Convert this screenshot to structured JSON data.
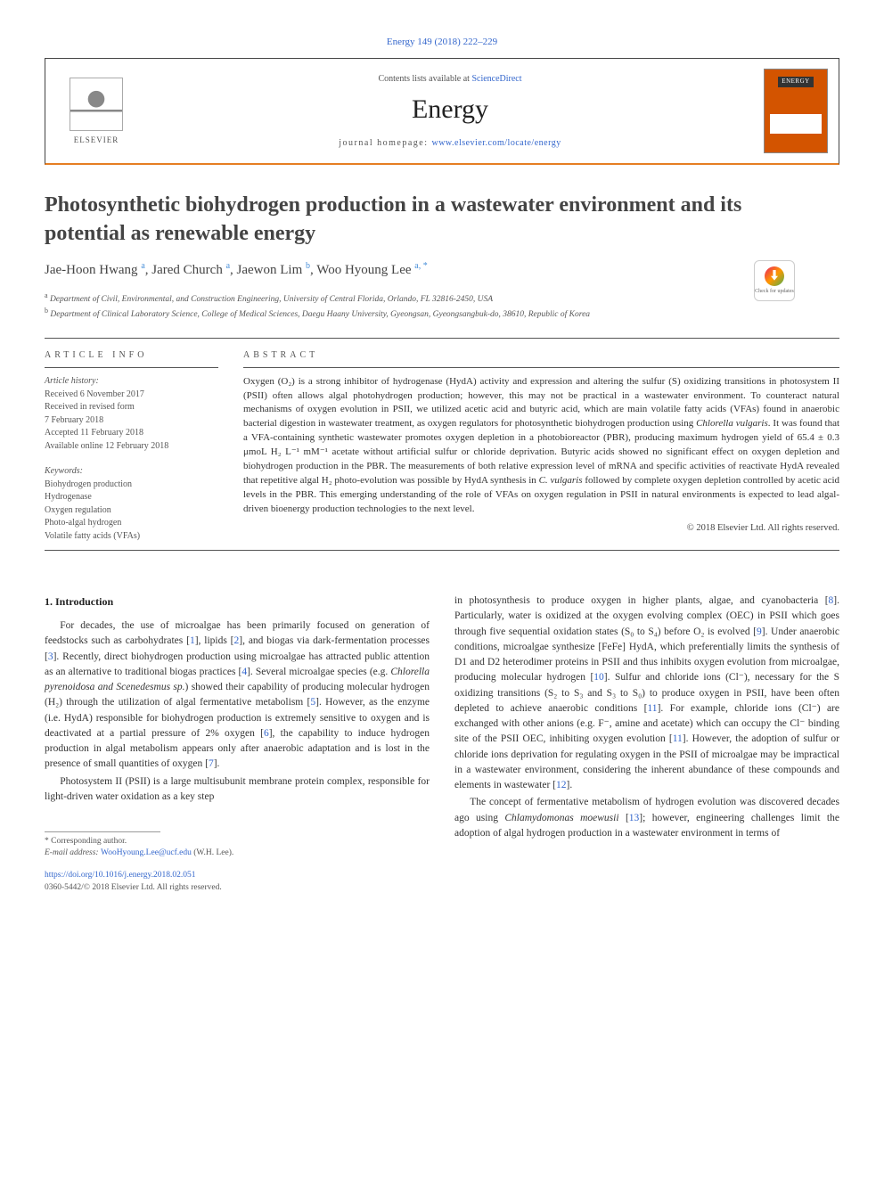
{
  "top_link": "Energy 149 (2018) 222–229",
  "header": {
    "contents_prefix": "Contents lists available at ",
    "contents_link": "ScienceDirect",
    "journal_title": "Energy",
    "homepage_prefix": "journal homepage: ",
    "homepage_link": "www.elsevier.com/locate/energy",
    "publisher_name": "ELSEVIER",
    "cover_label": "ENERGY"
  },
  "check_updates_label": "Check for updates",
  "title": "Photosynthetic biohydrogen production in a wastewater environment and its potential as renewable energy",
  "authors_html": "Jae-Hoon Hwang <sup>a</sup>, Jared Church <sup>a</sup>, Jaewon Lim <sup>b</sup>, Woo Hyoung Lee <sup>a, *</sup>",
  "affiliations": {
    "a": "Department of Civil, Environmental, and Construction Engineering, University of Central Florida, Orlando, FL 32816-2450, USA",
    "b": "Department of Clinical Laboratory Science, College of Medical Sciences, Daegu Haany University, Gyeongsan, Gyeongsangbuk-do, 38610, Republic of Korea"
  },
  "article_info": {
    "heading": "ARTICLE INFO",
    "history_label": "Article history:",
    "history": [
      "Received 6 November 2017",
      "Received in revised form",
      "7 February 2018",
      "Accepted 11 February 2018",
      "Available online 12 February 2018"
    ],
    "keywords_label": "Keywords:",
    "keywords": [
      "Biohydrogen production",
      "Hydrogenase",
      "Oxygen regulation",
      "Photo-algal hydrogen",
      "Volatile fatty acids (VFAs)"
    ]
  },
  "abstract": {
    "heading": "ABSTRACT",
    "text": "Oxygen (O₂) is a strong inhibitor of hydrogenase (HydA) activity and expression and altering the sulfur (S) oxidizing transitions in photosystem II (PSII) often allows algal photohydrogen production; however, this may not be practical in a wastewater environment. To counteract natural mechanisms of oxygen evolution in PSII, we utilized acetic acid and butyric acid, which are main volatile fatty acids (VFAs) found in anaerobic bacterial digestion in wastewater treatment, as oxygen regulators for photosynthetic biohydrogen production using Chlorella vulgaris. It was found that a VFA-containing synthetic wastewater promotes oxygen depletion in a photobioreactor (PBR), producing maximum hydrogen yield of 65.4 ± 0.3 μmoL H₂ L⁻¹ mM⁻¹ acetate without artificial sulfur or chloride deprivation. Butyric acids showed no significant effect on oxygen depletion and biohydrogen production in the PBR. The measurements of both relative expression level of mRNA and specific activities of reactivate HydA revealed that repetitive algal H₂ photo-evolution was possible by HydA synthesis in C. vulgaris followed by complete oxygen depletion controlled by acetic acid levels in the PBR. This emerging understanding of the role of VFAs on oxygen regulation in PSII in natural environments is expected to lead algal-driven bioenergy production technologies to the next level.",
    "copyright": "© 2018 Elsevier Ltd. All rights reserved."
  },
  "body": {
    "section_heading": "1. Introduction",
    "col1_p1": "For decades, the use of microalgae has been primarily focused on generation of feedstocks such as carbohydrates [1], lipids [2], and biogas via dark-fermentation processes [3]. Recently, direct biohydrogen production using microalgae has attracted public attention as an alternative to traditional biogas practices [4]. Several microalgae species (e.g. Chlorella pyrenoidosa and Scenedesmus sp.) showed their capability of producing molecular hydrogen (H₂) through the utilization of algal fermentative metabolism [5]. However, as the enzyme (i.e. HydA) responsible for biohydrogen production is extremely sensitive to oxygen and is deactivated at a partial pressure of 2% oxygen [6], the capability to induce hydrogen production in algal metabolism appears only after anaerobic adaptation and is lost in the presence of small quantities of oxygen [7].",
    "col1_p2": "Photosystem II (PSII) is a large multisubunit membrane protein complex, responsible for light-driven water oxidation as a key step",
    "col2_p1": "in photosynthesis to produce oxygen in higher plants, algae, and cyanobacteria [8]. Particularly, water is oxidized at the oxygen evolving complex (OEC) in PSII which goes through five sequential oxidation states (S₀ to S₄) before O₂ is evolved [9]. Under anaerobic conditions, microalgae synthesize [FeFe] HydA, which preferentially limits the synthesis of D1 and D2 heterodimer proteins in PSII and thus inhibits oxygen evolution from microalgae, producing molecular hydrogen [10]. Sulfur and chloride ions (Cl⁻), necessary for the S oxidizing transitions (S₂ to S₃ and S₃ to S₀) to produce oxygen in PSII, have been often depleted to achieve anaerobic conditions [11]. For example, chloride ions (Cl⁻) are exchanged with other anions (e.g. F⁻, amine and acetate) which can occupy the Cl⁻ binding site of the PSII OEC, inhibiting oxygen evolution [11]. However, the adoption of sulfur or chloride ions deprivation for regulating oxygen in the PSII of microalgae may be impractical in a wastewater environment, considering the inherent abundance of these compounds and elements in wastewater [12].",
    "col2_p2": "The concept of fermentative metabolism of hydrogen evolution was discovered decades ago using Chlamydomonas moewusii [13]; however, engineering challenges limit the adoption of algal hydrogen production in a wastewater environment in terms of"
  },
  "footnote": {
    "corr": "* Corresponding author.",
    "email_label": "E-mail address: ",
    "email": "WooHyoung.Lee@ucf.edu",
    "email_suffix": " (W.H. Lee)."
  },
  "footer": {
    "doi": "https://doi.org/10.1016/j.energy.2018.02.051",
    "issn_line": "0360-5442/© 2018 Elsevier Ltd. All rights reserved."
  },
  "colors": {
    "link": "#3366cc",
    "accent_orange": "#e67e22",
    "text_gray": "#555555",
    "border_gray": "#444444",
    "cover_orange": "#d35400"
  }
}
